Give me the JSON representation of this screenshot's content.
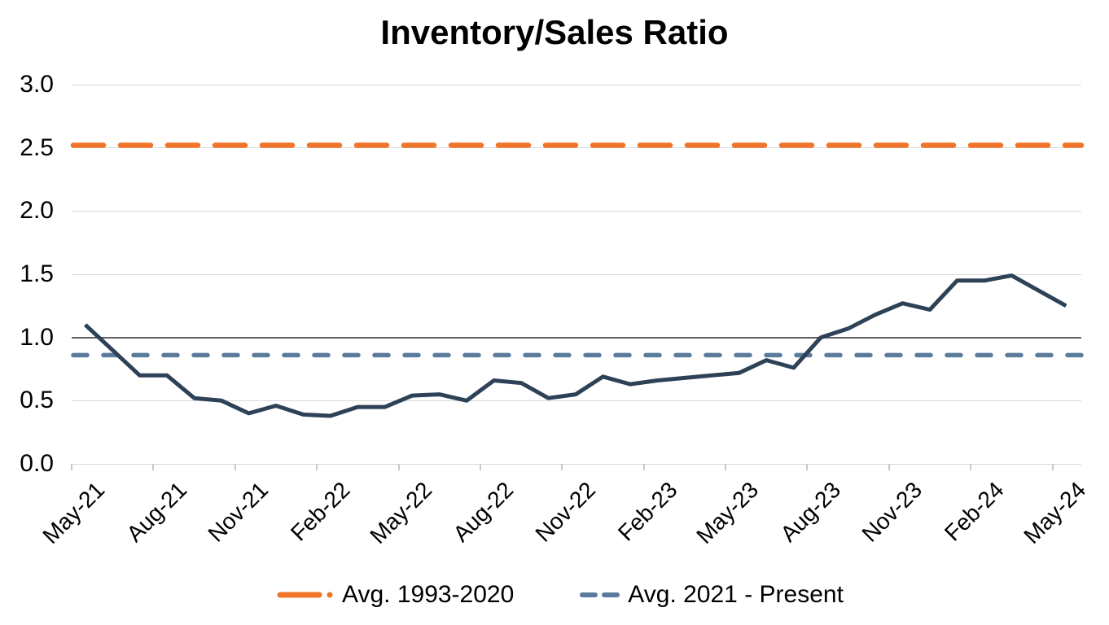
{
  "title": "Inventory/Sales Ratio",
  "chart_data": {
    "type": "line",
    "title": "Inventory/Sales Ratio",
    "ylim": [
      0,
      3.0
    ],
    "y_ticks": [
      0.0,
      0.5,
      1.0,
      1.5,
      2.0,
      2.5,
      3.0
    ],
    "emphasized_gridline": 1.0,
    "grid": "horizontal",
    "legend_position": "bottom",
    "x_tick_labels": [
      "May-21",
      "Aug-21",
      "Nov-21",
      "Feb-22",
      "May-22",
      "Aug-22",
      "Nov-22",
      "Feb-23",
      "May-23",
      "Aug-23",
      "Nov-23",
      "Feb-24",
      "May-24"
    ],
    "months": [
      "May-21",
      "Jun-21",
      "Jul-21",
      "Aug-21",
      "Sep-21",
      "Oct-21",
      "Nov-21",
      "Dec-21",
      "Jan-22",
      "Feb-22",
      "Mar-22",
      "Apr-22",
      "May-22",
      "Jun-22",
      "Jul-22",
      "Aug-22",
      "Sep-22",
      "Oct-22",
      "Nov-22",
      "Dec-22",
      "Jan-23",
      "Feb-23",
      "Mar-23",
      "Apr-23",
      "May-23",
      "Jun-23",
      "Jul-23",
      "Aug-23",
      "Sep-23",
      "Oct-23",
      "Nov-23",
      "Dec-23",
      "Jan-24",
      "Feb-24",
      "Mar-24",
      "Apr-24",
      "May-24"
    ],
    "series": [
      {
        "name": "Inventory/Sales Ratio",
        "color": "#2d4257",
        "style": "solid",
        "values": [
          1.1,
          0.9,
          0.7,
          0.7,
          0.52,
          0.5,
          0.4,
          0.46,
          0.39,
          0.38,
          0.45,
          0.45,
          0.54,
          0.55,
          0.5,
          0.66,
          0.64,
          0.52,
          0.55,
          0.69,
          0.63,
          0.66,
          0.68,
          0.7,
          0.72,
          0.82,
          0.76,
          1.0,
          1.07,
          1.18,
          1.27,
          1.22,
          1.45,
          1.45,
          1.49,
          1.37,
          1.25
        ]
      }
    ],
    "reference_lines": [
      {
        "name": "Avg. 1993-2020",
        "value": 2.52,
        "color": "#f0752a",
        "style": "long-dash"
      },
      {
        "name": "Avg. 2021 - Present",
        "value": 0.86,
        "color": "#5b7b9c",
        "style": "dashed"
      }
    ]
  },
  "colors": {
    "gridline": "#d9d9d9",
    "emphasized_gridline": "#606060",
    "axis_tick": "#c8c8c8",
    "text": "#000000"
  }
}
